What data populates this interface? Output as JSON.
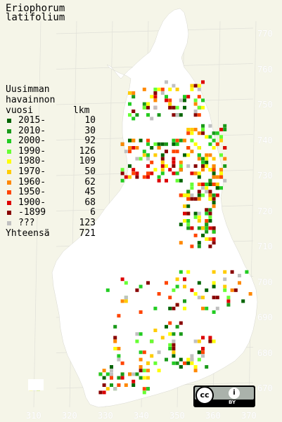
{
  "title": {
    "line1": "Eriophorum",
    "line2": "latifolium"
  },
  "legend": {
    "header1": "Uusimman",
    "header2": "havainnon",
    "header3_left": "vuosi",
    "header3_right": "lkm",
    "entries": [
      {
        "label": "2015-",
        "count": "10",
        "color": "#006400"
      },
      {
        "label": "2010-",
        "count": "30",
        "color": "#1a9a1a"
      },
      {
        "label": "2000-",
        "count": "92",
        "color": "#22cc22"
      },
      {
        "label": "1990-",
        "count": "126",
        "color": "#66ff33"
      },
      {
        "label": "1980-",
        "count": "109",
        "color": "#ffff00"
      },
      {
        "label": "1970-",
        "count": "50",
        "color": "#ffcc00"
      },
      {
        "label": "1960-",
        "count": "62",
        "color": "#ff8800"
      },
      {
        "label": "1950-",
        "count": "45",
        "color": "#ff4400"
      },
      {
        "label": "1900-",
        "count": "68",
        "color": "#dd0000"
      },
      {
        "label": "-1899",
        "count": "6",
        "color": "#880000"
      },
      {
        "label": "???",
        "count": "123",
        "color": "#c0c0c0"
      }
    ],
    "total_label": "Yhteensä",
    "total_count": "721"
  },
  "y_ticks": [
    "770",
    "760",
    "750",
    "740",
    "730",
    "720",
    "710",
    "700",
    "690",
    "680",
    "670"
  ],
  "x_ticks": [
    "310",
    "320",
    "330",
    "340",
    "350",
    "360",
    "370"
  ],
  "license": {
    "cc": "cc",
    "by_icon": "i",
    "by": "BY"
  }
}
